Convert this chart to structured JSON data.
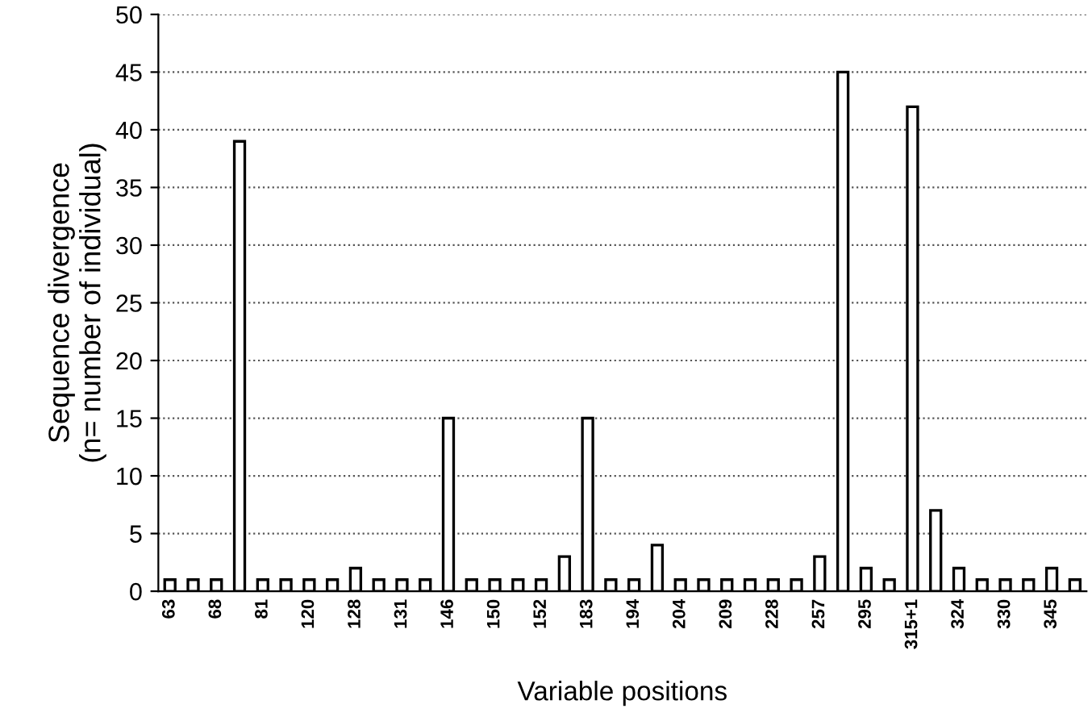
{
  "chart_data": {
    "type": "bar",
    "xlabel": "Variable positions",
    "ylabel": "Sequence divergence\n(n= number of individual)",
    "categories": [
      "63",
      null,
      "68",
      null,
      "81",
      null,
      "120",
      null,
      "128",
      null,
      "131",
      null,
      "146",
      null,
      "150",
      null,
      "152",
      null,
      "183",
      null,
      "194",
      null,
      "204",
      null,
      "209",
      null,
      "228",
      null,
      "257",
      null,
      "295",
      null,
      "315+1",
      null,
      "324",
      null,
      "330",
      null,
      "345",
      null
    ],
    "values": [
      1,
      1,
      1,
      39,
      1,
      1,
      1,
      1,
      2,
      1,
      1,
      1,
      15,
      1,
      1,
      1,
      1,
      3,
      15,
      1,
      1,
      4,
      1,
      1,
      1,
      1,
      1,
      1,
      3,
      45,
      2,
      1,
      42,
      7,
      2,
      1,
      1,
      1,
      2,
      1
    ],
    "color": "#ffffff",
    "ylim": [
      0,
      50
    ],
    "yticks": [
      0,
      5,
      10,
      15,
      20,
      25,
      30,
      35,
      40,
      45,
      50
    ],
    "grid": "y"
  }
}
